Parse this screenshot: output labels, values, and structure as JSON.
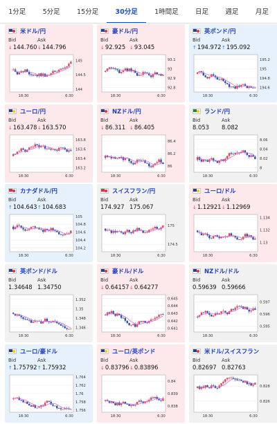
{
  "tabs": [
    {
      "label": "1分足"
    },
    {
      "label": "5分足"
    },
    {
      "label": "15分足"
    },
    {
      "label": "30分足"
    },
    {
      "label": "1時間足"
    },
    {
      "label": "日足"
    },
    {
      "label": "週足"
    },
    {
      "label": "月足"
    }
  ],
  "active_tab": 3,
  "bid_label": "Bid",
  "ask_label": "Ask",
  "cards": [
    {
      "pair": "米ドル/円",
      "flag": "us",
      "trend": "down",
      "bid": "144.760",
      "ask": "144.796",
      "chart_data": {
        "type": "candlestick",
        "xticks": [
          "18:30",
          "6:30"
        ],
        "yticks": [
          "145",
          "144.5",
          "144"
        ],
        "ylim": [
          143.9,
          145.2
        ]
      }
    },
    {
      "pair": "豪ドル/円",
      "flag": "au",
      "trend": "down",
      "bid": "92.925",
      "ask": "93.045",
      "chart_data": {
        "type": "candlestick",
        "xticks": [
          "18:30",
          "6:30"
        ],
        "yticks": [
          "93.1",
          "93",
          "92.9",
          "92.8"
        ],
        "ylim": [
          92.75,
          93.15
        ]
      }
    },
    {
      "pair": "英ポンド/円",
      "flag": "gb",
      "trend": "up",
      "bid": "194.972",
      "ask": "195.092",
      "chart_data": {
        "type": "candlestick",
        "xticks": [
          "18:30",
          "6:30"
        ],
        "yticks": [
          "195.2",
          "195",
          "194.8",
          "194.6"
        ],
        "ylim": [
          194.5,
          195.3
        ]
      }
    },
    {
      "pair": "ユーロ/円",
      "flag": "eu",
      "trend": "down",
      "bid": "163.478",
      "ask": "163.570",
      "chart_data": {
        "type": "candlestick",
        "xticks": [
          "18:30",
          "6:30"
        ],
        "yticks": [
          "163.8",
          "163.6",
          "163.4",
          "163.2"
        ],
        "ylim": [
          163.1,
          163.9
        ]
      }
    },
    {
      "pair": "NZドル/円",
      "flag": "nz",
      "trend": "down",
      "bid": "86.311",
      "ask": "86.405",
      "chart_data": {
        "type": "candlestick",
        "xticks": [
          "18:30",
          "6:30"
        ],
        "yticks": [
          "86.4",
          "86.2",
          "86"
        ],
        "ylim": [
          85.9,
          86.5
        ]
      }
    },
    {
      "pair": "ランド/円",
      "flag": "za",
      "trend": "flat",
      "bid": "8.053",
      "ask": "8.082",
      "chart_data": {
        "type": "candlestick",
        "xticks": [
          "18:30",
          "6:30"
        ],
        "yticks": [
          "8.06",
          "8.04",
          "8.02",
          "8"
        ],
        "ylim": [
          7.99,
          8.07
        ]
      }
    },
    {
      "pair": "カナダドル/円",
      "flag": "ca",
      "trend": "up",
      "bid": "104.643",
      "ask": "104.683",
      "chart_data": {
        "type": "candlestick",
        "xticks": [
          "18:30",
          "6:30"
        ],
        "yticks": [
          "105",
          "104.8",
          "104.6",
          "104.4",
          "104.2"
        ],
        "ylim": [
          104.1,
          105.05
        ]
      }
    },
    {
      "pair": "スイスフラン/円",
      "flag": "ch",
      "trend": "flat",
      "bid": "174.927",
      "ask": "175.067",
      "chart_data": {
        "type": "candlestick",
        "xticks": [
          "18:30",
          "6:30"
        ],
        "yticks": [
          "175",
          "174.5"
        ],
        "ylim": [
          174.3,
          175.3
        ]
      }
    },
    {
      "pair": "ユーロ/ドル",
      "flag": "eu",
      "trend": "down",
      "bid": "1.12921",
      "ask": "1.12969",
      "chart_data": {
        "type": "candlestick",
        "xticks": [
          "18:30",
          "6:30"
        ],
        "yticks": [
          "1.134",
          "1.132",
          "1.13"
        ],
        "ylim": [
          1.1285,
          1.1345
        ]
      }
    },
    {
      "pair": "英ポンド/ドル",
      "flag": "gb",
      "trend": "flat",
      "bid": "1.34648",
      "ask": "1.34750",
      "chart_data": {
        "type": "candlestick",
        "xticks": [
          "18:30",
          "6:30"
        ],
        "yticks": [
          "1.352",
          "1.35",
          "1.348",
          "1.346"
        ],
        "ylim": [
          1.345,
          1.353
        ]
      }
    },
    {
      "pair": "豪ドル/ドル",
      "flag": "au",
      "trend": "down",
      "bid": "0.64157",
      "ask": "0.64277",
      "chart_data": {
        "type": "candlestick",
        "xticks": [
          "18:30",
          "6:30"
        ],
        "yticks": [
          "0.645",
          "0.644",
          "0.643",
          "0.642",
          "0.641"
        ],
        "ylim": [
          0.6405,
          0.6455
        ]
      }
    },
    {
      "pair": "NZドル/ドル",
      "flag": "nz",
      "trend": "flat",
      "bid": "0.59639",
      "ask": "0.59666",
      "chart_data": {
        "type": "candlestick",
        "xticks": [
          "18:30",
          "6:30"
        ],
        "yticks": [
          "0.597",
          "0.596",
          "0.595"
        ],
        "ylim": [
          0.5945,
          0.5976
        ]
      }
    },
    {
      "pair": "ユーロ/豪ドル",
      "flag": "eu",
      "trend": "up",
      "bid": "1.75792",
      "ask": "1.75932",
      "chart_data": {
        "type": "candlestick",
        "xticks": [
          "18:30",
          "6:30"
        ],
        "yticks": [
          "1.764",
          "1.762",
          "1.76",
          "1.758",
          "1.756"
        ],
        "ylim": [
          1.7555,
          1.7645
        ]
      }
    },
    {
      "pair": "ユーロ/英ポンド",
      "flag": "eu",
      "trend": "down",
      "bid": "0.83796",
      "ask": "0.83896",
      "chart_data": {
        "type": "candlestick",
        "xticks": [
          "18:30",
          "6:30"
        ],
        "yticks": [
          "0.84",
          "0.839",
          "0.838"
        ],
        "ylim": [
          0.8375,
          0.8405
        ]
      }
    },
    {
      "pair": "米ドル/スイスフラン",
      "flag": "us",
      "trend": "flat",
      "bid": "0.82697",
      "ask": "0.82763",
      "chart_data": {
        "type": "candlestick",
        "xticks": [
          "18:30",
          "6:30"
        ],
        "yticks": [
          "0.828",
          "0.826"
        ],
        "ylim": [
          0.8245,
          0.8295
        ]
      }
    }
  ],
  "colors": {
    "active_tab": "#1a4fbf",
    "pair_text": "#1d3fbf",
    "up_arrow": "#1f7de0",
    "down_arrow": "#e23a52",
    "card_down_bg": "#fde9ec",
    "card_up_bg": "#e6f1fb",
    "card_flat_bg": "#f1f1f1",
    "candle_up": "#e2425b",
    "candle_down": "#2f4fa8",
    "ma_line": "#d070d8"
  }
}
